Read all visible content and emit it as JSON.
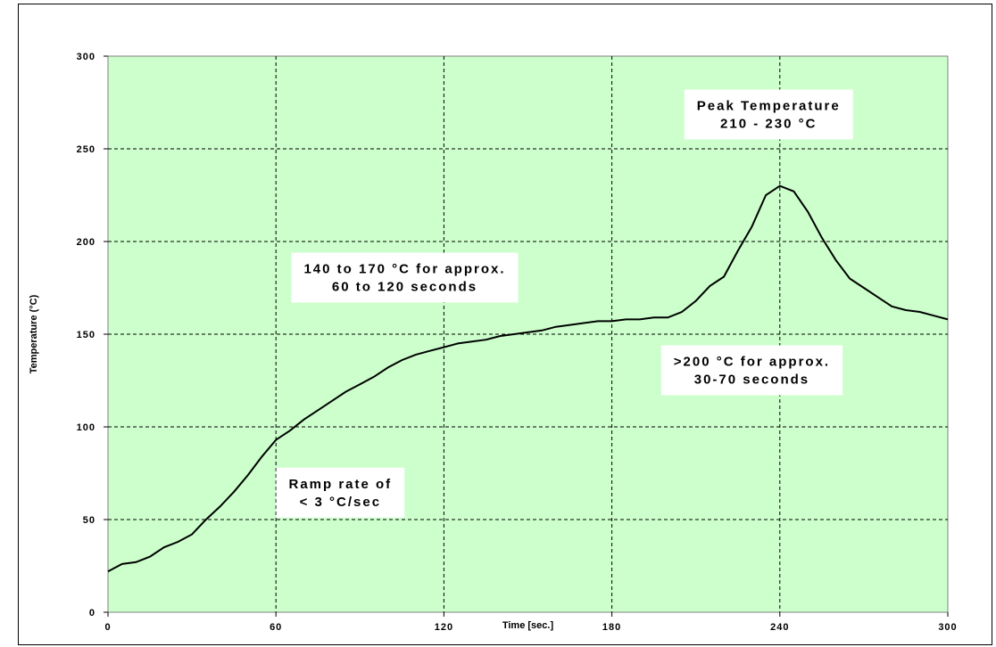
{
  "chart_data": {
    "type": "line",
    "title": "",
    "xlabel": "Time [sec.]",
    "ylabel": "Temperature (°C)",
    "xlim": [
      0,
      300
    ],
    "ylim": [
      0,
      300
    ],
    "x_ticks": [
      "0",
      "60",
      "120",
      "180",
      "240",
      "300"
    ],
    "y_ticks": [
      "0",
      "50",
      "100",
      "150",
      "200",
      "250",
      "300"
    ],
    "grid": true,
    "background_color": "#ccffcc",
    "line_color": "#000000",
    "series": [
      {
        "x": [
          0,
          5,
          10,
          15,
          20,
          25,
          30,
          35,
          40,
          45,
          50,
          55,
          60,
          65,
          70,
          75,
          80,
          85,
          90,
          95,
          100,
          105,
          110,
          115,
          120,
          125,
          130,
          135,
          140,
          145,
          150,
          155,
          160,
          165,
          170,
          175,
          180,
          185,
          190,
          195,
          200,
          205,
          210,
          215,
          220,
          225,
          230,
          235,
          240,
          245,
          250,
          255,
          260,
          265,
          270,
          275,
          280,
          285,
          290,
          295,
          300
        ],
        "y": [
          22,
          26,
          27,
          30,
          35,
          38,
          42,
          50,
          57,
          65,
          74,
          84,
          93,
          98,
          104,
          109,
          114,
          119,
          123,
          127,
          132,
          136,
          139,
          141,
          143,
          145,
          146,
          147,
          149,
          150,
          151,
          152,
          154,
          155,
          156,
          157,
          157,
          158,
          158,
          159,
          159,
          162,
          168,
          176,
          181,
          195,
          208,
          225,
          230,
          227,
          216,
          202,
          190,
          180,
          175,
          170,
          165,
          163,
          162,
          160,
          158
        ]
      }
    ],
    "annotations": [
      {
        "lines": [
          "Peak Temperature",
          "210 - 230 °C"
        ],
        "x": 236,
        "y": 282
      },
      {
        "lines": [
          "140 to 170 °C for approx.",
          "60 to 120 seconds"
        ],
        "x": 106,
        "y": 194
      },
      {
        "lines": [
          ">200 °C for approx.",
          "30-70 seconds"
        ],
        "x": 230,
        "y": 144
      },
      {
        "lines": [
          "Ramp rate of",
          "< 3 °C/sec"
        ],
        "x": 83,
        "y": 78
      }
    ]
  }
}
